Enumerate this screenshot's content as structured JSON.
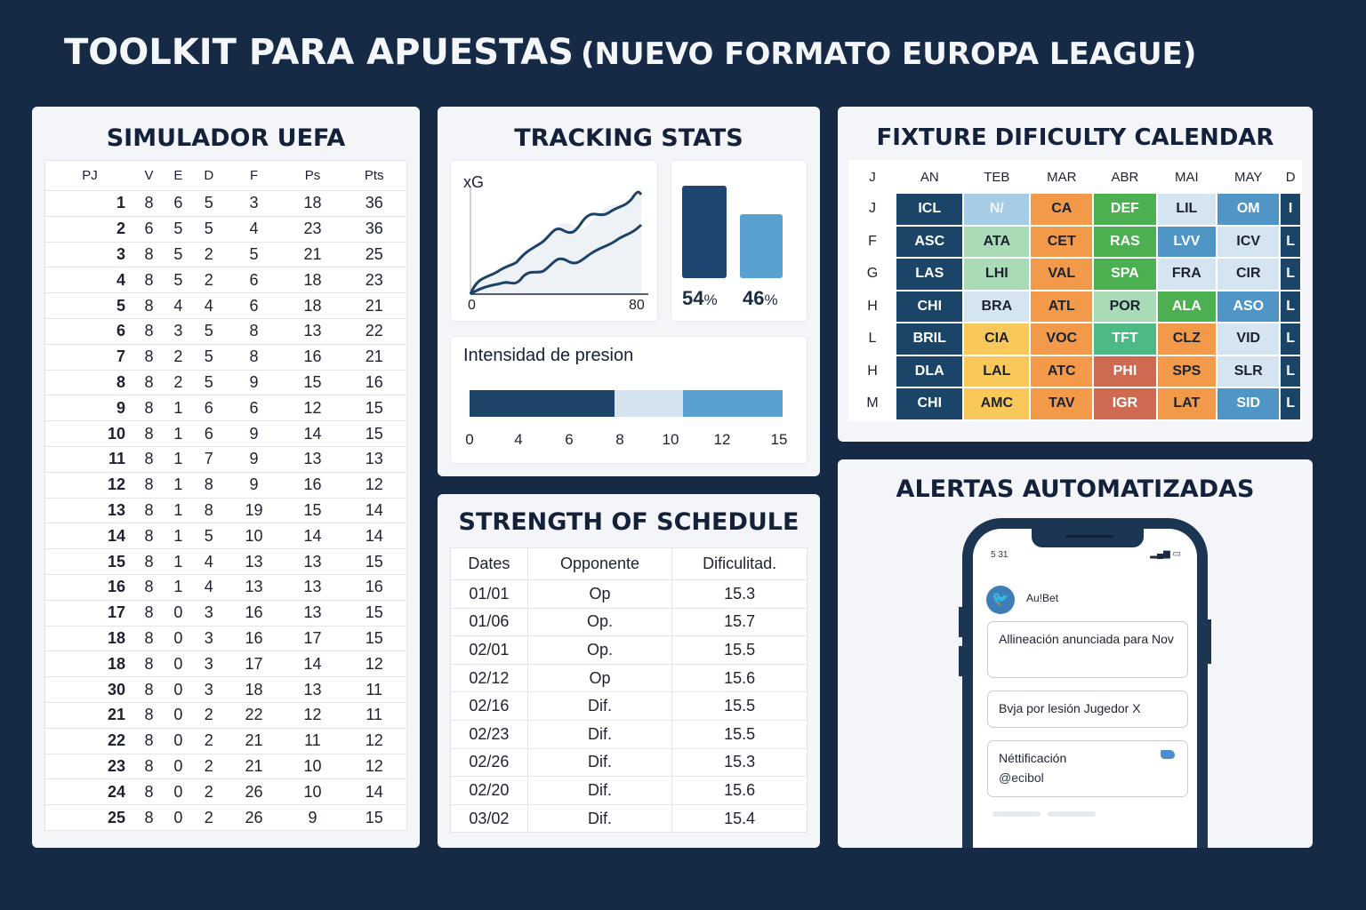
{
  "header": {
    "title": "TOOLKIT PARA APUESTAS",
    "subtitle": "(NUEVO FORMATO EUROPA LEAGUE)"
  },
  "simulator": {
    "title": "SIMULADOR UEFA",
    "columns": [
      "PJ",
      "V",
      "E",
      "D",
      "F",
      "Ps",
      "Pts"
    ],
    "rows": [
      [
        "1",
        "8",
        "6",
        "5",
        "3",
        "18",
        "36"
      ],
      [
        "2",
        "6",
        "5",
        "5",
        "4",
        "23",
        "36"
      ],
      [
        "3",
        "8",
        "5",
        "2",
        "5",
        "21",
        "25"
      ],
      [
        "4",
        "8",
        "5",
        "2",
        "6",
        "18",
        "23"
      ],
      [
        "5",
        "8",
        "4",
        "4",
        "6",
        "18",
        "21"
      ],
      [
        "6",
        "8",
        "3",
        "5",
        "8",
        "13",
        "22"
      ],
      [
        "7",
        "8",
        "2",
        "5",
        "8",
        "16",
        "21"
      ],
      [
        "8",
        "8",
        "2",
        "5",
        "9",
        "15",
        "16"
      ],
      [
        "9",
        "8",
        "1",
        "6",
        "6",
        "12",
        "15"
      ],
      [
        "10",
        "8",
        "1",
        "6",
        "9",
        "14",
        "15"
      ],
      [
        "11",
        "8",
        "1",
        "7",
        "9",
        "13",
        "13"
      ],
      [
        "12",
        "8",
        "1",
        "8",
        "9",
        "16",
        "12"
      ],
      [
        "13",
        "8",
        "1",
        "8",
        "19",
        "15",
        "14"
      ],
      [
        "14",
        "8",
        "1",
        "5",
        "10",
        "14",
        "14"
      ],
      [
        "15",
        "8",
        "1",
        "4",
        "13",
        "13",
        "15"
      ],
      [
        "16",
        "8",
        "1",
        "4",
        "13",
        "13",
        "16"
      ],
      [
        "17",
        "8",
        "0",
        "3",
        "16",
        "13",
        "15"
      ],
      [
        "18",
        "8",
        "0",
        "3",
        "16",
        "17",
        "15"
      ],
      [
        "18",
        "8",
        "0",
        "3",
        "17",
        "14",
        "12"
      ],
      [
        "30",
        "8",
        "0",
        "3",
        "18",
        "13",
        "11"
      ],
      [
        "21",
        "8",
        "0",
        "2",
        "22",
        "12",
        "11"
      ],
      [
        "22",
        "8",
        "0",
        "2",
        "21",
        "11",
        "12"
      ],
      [
        "23",
        "8",
        "0",
        "2",
        "21",
        "10",
        "12"
      ],
      [
        "24",
        "8",
        "0",
        "2",
        "26",
        "10",
        "14"
      ],
      [
        "25",
        "8",
        "0",
        "2",
        "26",
        "9",
        "15"
      ]
    ]
  },
  "tracking": {
    "title": "TRACKING STATS",
    "xg": {
      "label": "xG",
      "x_min": "0",
      "x_max": "80"
    },
    "possession": {
      "home_pct": "54",
      "away_pct": "46",
      "unit": "%",
      "home_color": "#1d4770",
      "away_color": "#58a0cf"
    },
    "pressure": {
      "title": "Intensidad de presion",
      "ticks": [
        "0",
        "4",
        "6",
        "8",
        "10",
        "12",
        "15"
      ]
    }
  },
  "fdc": {
    "title": "FIXTURE DIFICULTY CALENDAR",
    "columns": [
      "J",
      "AN",
      "TEB",
      "MAR",
      "ABR",
      "MAI",
      "MAY",
      "D"
    ],
    "rows": [
      {
        "label": "J",
        "cells": [
          [
            "ICL",
            "dark"
          ],
          [
            "N/",
            "lightblue"
          ],
          [
            "CA",
            "orange"
          ],
          [
            "DEF",
            "green"
          ],
          [
            "LIL",
            "pale"
          ],
          [
            "OM",
            "mid"
          ],
          [
            "I",
            "dark"
          ]
        ]
      },
      {
        "label": "F",
        "cells": [
          [
            "ASC",
            "dark"
          ],
          [
            "ATA",
            "mint"
          ],
          [
            "CET",
            "orange"
          ],
          [
            "RAS",
            "green"
          ],
          [
            "LVV",
            "mid"
          ],
          [
            "ICV",
            "pale"
          ],
          [
            "L",
            "dark"
          ]
        ]
      },
      {
        "label": "G",
        "cells": [
          [
            "LAS",
            "dark"
          ],
          [
            "LHI",
            "mint"
          ],
          [
            "VAL",
            "orange"
          ],
          [
            "SPA",
            "green"
          ],
          [
            "FRA",
            "pale"
          ],
          [
            "CIR",
            "pale"
          ],
          [
            "L",
            "dark"
          ]
        ]
      },
      {
        "label": "H",
        "cells": [
          [
            "CHI",
            "dark"
          ],
          [
            "BRA",
            "pale"
          ],
          [
            "ATL",
            "orange"
          ],
          [
            "POR",
            "mint"
          ],
          [
            "ALA",
            "green"
          ],
          [
            "ASO",
            "mid"
          ],
          [
            "L",
            "dark"
          ]
        ]
      },
      {
        "label": "L",
        "cells": [
          [
            "BRIL",
            "dark"
          ],
          [
            "CIA",
            "yellow"
          ],
          [
            "VOC",
            "orange"
          ],
          [
            "TFT",
            "teal"
          ],
          [
            "CLZ",
            "orange"
          ],
          [
            "VID",
            "pale"
          ],
          [
            "L",
            "dark"
          ]
        ]
      },
      {
        "label": "H",
        "cells": [
          [
            "DLA",
            "dark"
          ],
          [
            "LAL",
            "yellow"
          ],
          [
            "ATC",
            "orange"
          ],
          [
            "PHI",
            "red"
          ],
          [
            "SPS",
            "orange"
          ],
          [
            "SLR",
            "pale"
          ],
          [
            "L",
            "dark"
          ]
        ]
      },
      {
        "label": "M",
        "cells": [
          [
            "CHI",
            "dark"
          ],
          [
            "AMC",
            "yellow"
          ],
          [
            "TAV",
            "orange"
          ],
          [
            "IGR",
            "red"
          ],
          [
            "LAT",
            "orange"
          ],
          [
            "SID",
            "mid"
          ],
          [
            "L",
            "dark"
          ]
        ]
      }
    ],
    "colors": {
      "dark": "#1b4469",
      "lightblue": "#a6cde6",
      "orange": "#f2994a",
      "green": "#4caf50",
      "pale": "#d4e5f1",
      "mid": "#4f95c6",
      "mint": "#a8dbb6",
      "yellow": "#f9c85a",
      "teal": "#4dba85",
      "red": "#cf6a52"
    }
  },
  "sos": {
    "title": "STRENGTH OF SCHEDULE",
    "columns": [
      "Dates",
      "Opponente",
      "Dificulitad."
    ],
    "rows": [
      [
        "01/01",
        "Op",
        "15.3"
      ],
      [
        "01/06",
        "Op.",
        "15.7"
      ],
      [
        "02/01",
        "Op.",
        "15.5"
      ],
      [
        "02/12",
        "Op",
        "15.6"
      ],
      [
        "02/16",
        "Dif.",
        "15.5"
      ],
      [
        "02/23",
        "Dif.",
        "15.5"
      ],
      [
        "02/26",
        "Dif.",
        "15.3"
      ],
      [
        "02/20",
        "Dif.",
        "15.6"
      ],
      [
        "03/02",
        "Dif.",
        "15.4"
      ]
    ]
  },
  "alerts": {
    "title": "ALERTAS AUTOMATIZADAS",
    "phone": {
      "time": "5 31",
      "account": "Au!Bet",
      "notifications": [
        {
          "text": "Allineación anunciada para Nov"
        },
        {
          "text": "Bvja por lesión Jugedor X"
        },
        {
          "text": "Néttificación",
          "handle": "@ecibol"
        }
      ]
    }
  }
}
